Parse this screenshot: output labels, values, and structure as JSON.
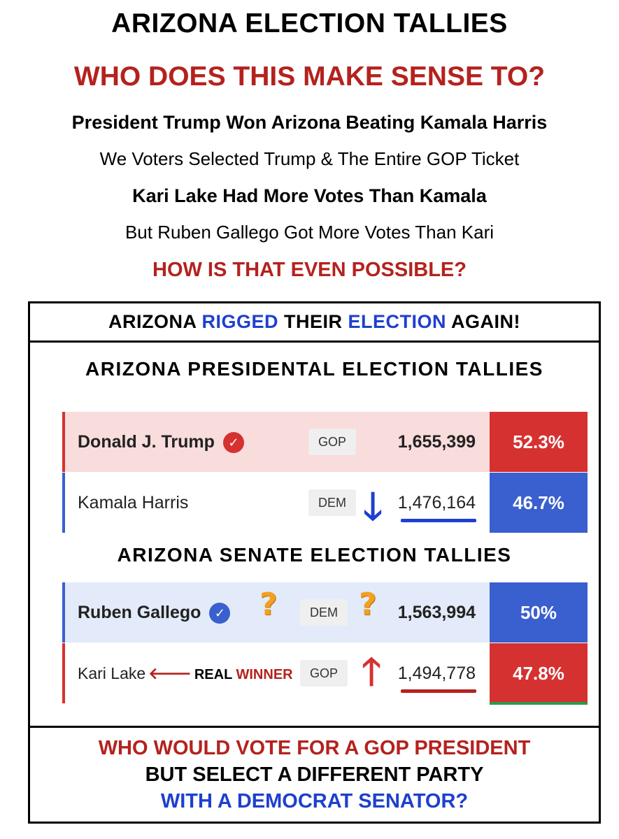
{
  "header": {
    "title": "ARIZONA ELECTION TALLIES",
    "question": "WHO DOES THIS MAKE SENSE TO?",
    "line1": "President Trump Won Arizona Beating Kamala Harris",
    "line2": "We Voters Selected Trump & The Entire GOP Ticket",
    "line3": "Kari Lake Had More Votes Than Kamala",
    "line4": "But Ruben Gallego Got More Votes Than Kari",
    "line5": "HOW IS THAT EVEN POSSIBLE?"
  },
  "rigged_banner": {
    "part1": "ARIZONA ",
    "part2": "RIGGED",
    "part3": " THEIR ",
    "part4": "ELECTION",
    "part5": " AGAIN!"
  },
  "presidential": {
    "title": "ARIZONA PRESIDENTAL  ELECTION TALLIES",
    "rows": [
      {
        "name": "Donald J. Trump",
        "party": "GOP",
        "votes": "1,655,399",
        "pct": "52.3%"
      },
      {
        "name": "Kamala Harris",
        "party": "DEM",
        "votes": "1,476,164",
        "pct": "46.7%"
      }
    ]
  },
  "senate": {
    "title": "ARIZONA SENATE ELECTION TALLIES",
    "rows": [
      {
        "name": "Ruben Gallego",
        "party": "DEM",
        "votes": "1,563,994",
        "pct": "50%"
      },
      {
        "name": "Kari Lake",
        "party": "GOP",
        "votes": "1,494,778",
        "pct": "47.8%",
        "annotation_a": "REAL ",
        "annotation_b": "WINNER"
      }
    ]
  },
  "footer": {
    "line1": "WHO WOULD VOTE FOR A GOP PRESIDENT",
    "line2": "BUT SELECT A DIFFERENT PARTY",
    "line3": "WITH A DEMOCRAT SENATOR?"
  },
  "colors": {
    "gop_red": "#d63131",
    "dem_blue": "#3a5fcf",
    "headline_red": "#b4221e",
    "highlight_blue": "#1e3fcf",
    "gop_row_bg": "#f9dcdc",
    "dem_row_bg": "#e3eaf9"
  },
  "icons": [
    "check-badge-icon",
    "question-mark-icon",
    "down-arrow-icon",
    "up-arrow-icon",
    "left-arrow-icon"
  ]
}
